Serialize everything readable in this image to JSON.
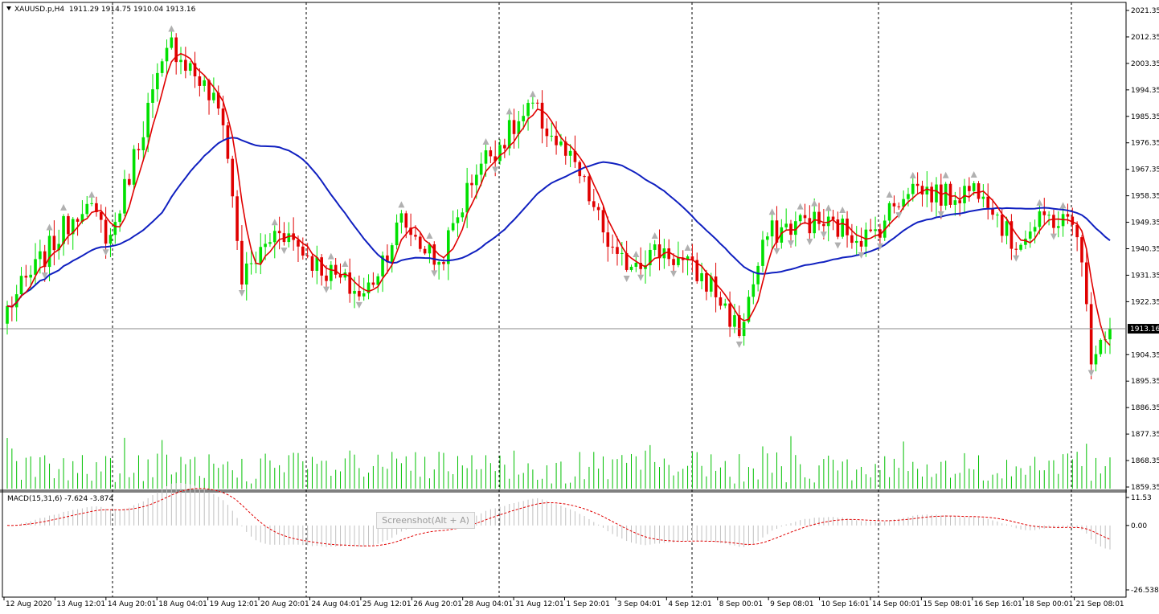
{
  "window": {
    "symbol": "XAUUSD.p,H4",
    "ohlc": [
      "1911.29",
      "1914.75",
      "1910.04",
      "1913.16"
    ],
    "current_price_label": "1913.16"
  },
  "macd": {
    "label": "MACD(15,31,6)",
    "main": "-7.624",
    "signal": "-3.874",
    "axis_labels": [
      "11.53",
      "0.00",
      "-26.538"
    ]
  },
  "tooltip": "Screenshot(Alt + A)",
  "colors": {
    "bull": "#00e000",
    "bear": "#e00000",
    "ma_fast": "#e00000",
    "ma_slow": "#1020c0",
    "volume": "#00c000",
    "macd_hist": "#c0c0c0",
    "macd_signal": "#e00000",
    "fractal": "#b0b0b0",
    "grid_separator": "#000000"
  },
  "chart_data": {
    "type": "candlestick",
    "price_axis": {
      "ylim": [
        1859.35,
        2021.35
      ],
      "tick_labels": [
        "2021.35",
        "2012.35",
        "2003.35",
        "1994.35",
        "1985.35",
        "1976.35",
        "1967.35",
        "1958.35",
        "1949.35",
        "1940.35",
        "1931.35",
        "1922.35",
        "1913.16",
        "1904.35",
        "1895.35",
        "1886.35",
        "1877.35",
        "1868.35",
        "1859.35"
      ]
    },
    "time_axis": {
      "tick_labels": [
        "12 Aug 2020",
        "13 Aug 12:01",
        "14 Aug 20:01",
        "18 Aug 04:01",
        "19 Aug 12:01",
        "20 Aug 20:01",
        "24 Aug 04:01",
        "25 Aug 12:01",
        "26 Aug 20:01",
        "28 Aug 04:01",
        "31 Aug 12:01",
        "1 Sep 20:01",
        "3 Sep 04:01",
        "4 Sep 12:01",
        "8 Sep 00:01",
        "9 Sep 08:01",
        "10 Sep 16:01",
        "14 Sep 00:01",
        "15 Sep 08:01",
        "16 Sep 16:01",
        "18 Sep 00:01",
        "21 Sep 08:01"
      ]
    },
    "anchors": [
      {
        "bar": 0,
        "close": 1920
      },
      {
        "bar": 8,
        "close": 1938
      },
      {
        "bar": 16,
        "close": 1956
      },
      {
        "bar": 22,
        "close": 1944
      },
      {
        "bar": 30,
        "close": 1988
      },
      {
        "bar": 35,
        "close": 2010
      },
      {
        "bar": 40,
        "close": 2000
      },
      {
        "bar": 46,
        "close": 1985
      },
      {
        "bar": 50,
        "close": 1930
      },
      {
        "bar": 58,
        "close": 1948
      },
      {
        "bar": 66,
        "close": 1935
      },
      {
        "bar": 76,
        "close": 1924
      },
      {
        "bar": 84,
        "close": 1950
      },
      {
        "bar": 92,
        "close": 1935
      },
      {
        "bar": 100,
        "close": 1968
      },
      {
        "bar": 112,
        "close": 1988
      },
      {
        "bar": 122,
        "close": 1965
      },
      {
        "bar": 130,
        "close": 1935
      },
      {
        "bar": 140,
        "close": 1940
      },
      {
        "bar": 150,
        "close": 1928
      },
      {
        "bar": 156,
        "close": 1912
      },
      {
        "bar": 162,
        "close": 1945
      },
      {
        "bar": 170,
        "close": 1950
      },
      {
        "bar": 176,
        "close": 1948
      },
      {
        "bar": 184,
        "close": 1944
      },
      {
        "bar": 192,
        "close": 1962
      },
      {
        "bar": 200,
        "close": 1958
      },
      {
        "bar": 208,
        "close": 1962
      },
      {
        "bar": 214,
        "close": 1942
      },
      {
        "bar": 222,
        "close": 1951
      },
      {
        "bar": 228,
        "close": 1948
      },
      {
        "bar": 231,
        "close": 1905
      },
      {
        "bar": 233,
        "close": 1911
      },
      {
        "bar": 235,
        "close": 1913.16
      }
    ],
    "bars_total": 236,
    "ma_fast_period": 5,
    "ma_slow_period": 34,
    "series": [
      {
        "name": "MACD(15,31,6)",
        "type": "histogram"
      },
      {
        "name": "Signal",
        "type": "line"
      }
    ]
  }
}
